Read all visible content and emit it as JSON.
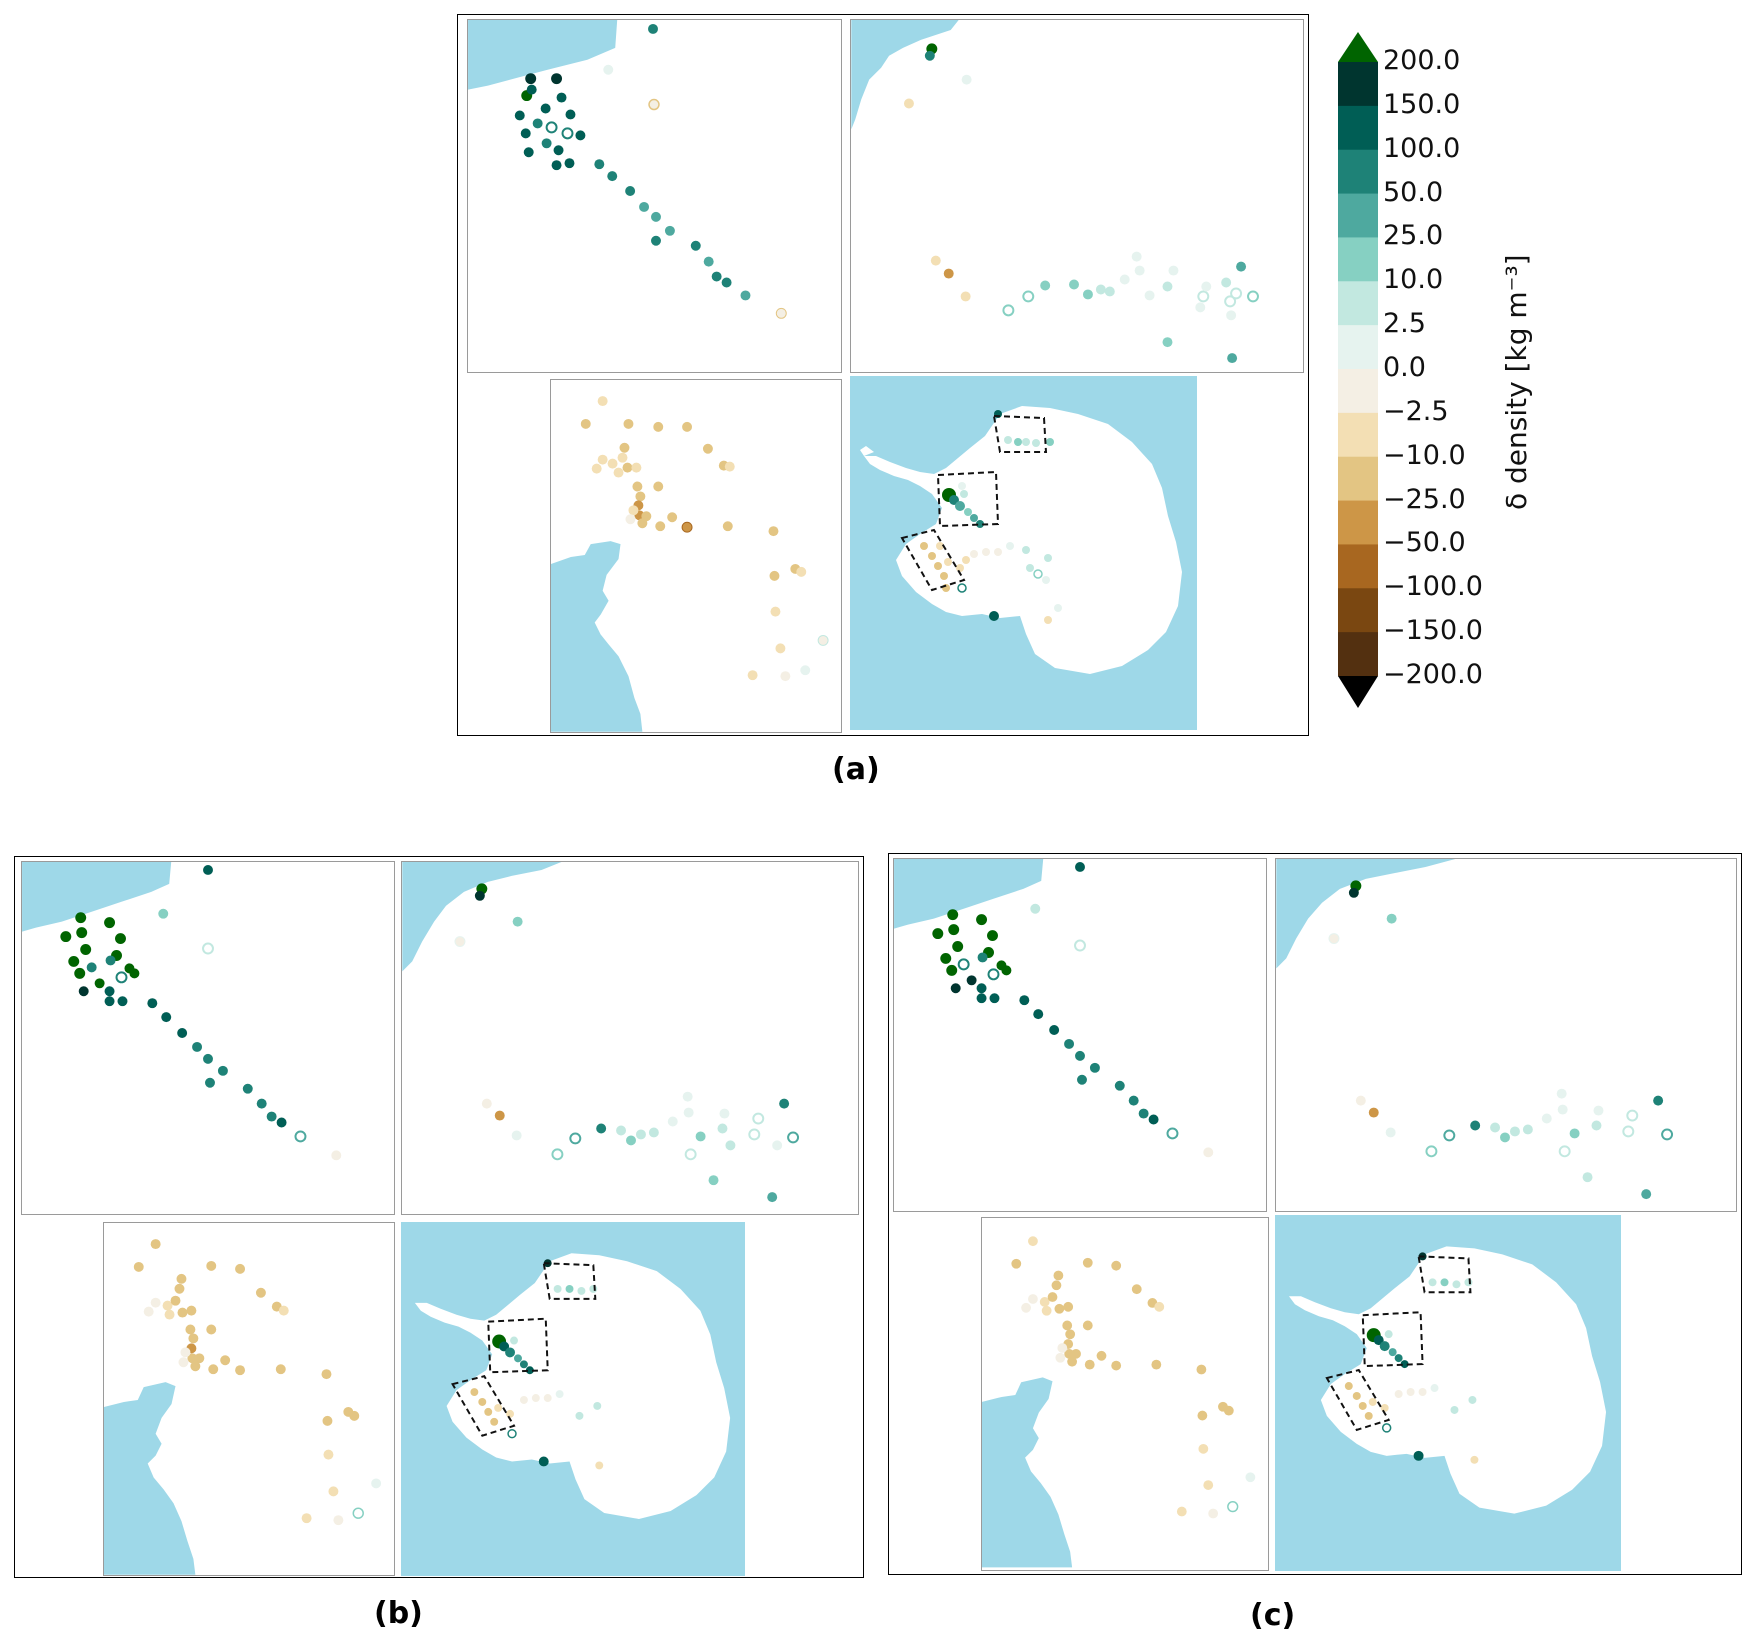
{
  "captions": {
    "a": "(a)",
    "b": "(b)",
    "c": "(c)"
  },
  "colors": {
    "ocean": "#9ed8e8",
    "land": "#ffffff",
    "box": "#111111"
  },
  "colorbar": {
    "title": "δ density [kg m⁻³]",
    "tick_labels": [
      "200.0",
      "150.0",
      "100.0",
      "50.0",
      "25.0",
      "10.0",
      "2.5",
      "0.0",
      "−2.5",
      "−10.0",
      "−25.0",
      "−50.0",
      "−100.0",
      "−150.0",
      "−200.0"
    ],
    "bands": [
      "#00352f",
      "#005e55",
      "#1e8277",
      "#4ea99f",
      "#86d0c2",
      "#c2e8e0",
      "#e6f3ef",
      "#f4efe4",
      "#f3dfb4",
      "#e3c583",
      "#cd9647",
      "#a86720",
      "#7a4711",
      "#533010"
    ],
    "extend_max_color": "#006400",
    "extend_min_color": "#000000"
  },
  "maps": {
    "a": {
      "label": "(a)"
    },
    "b": {
      "label": "(b)"
    },
    "c": {
      "label": "(c)"
    }
  }
}
